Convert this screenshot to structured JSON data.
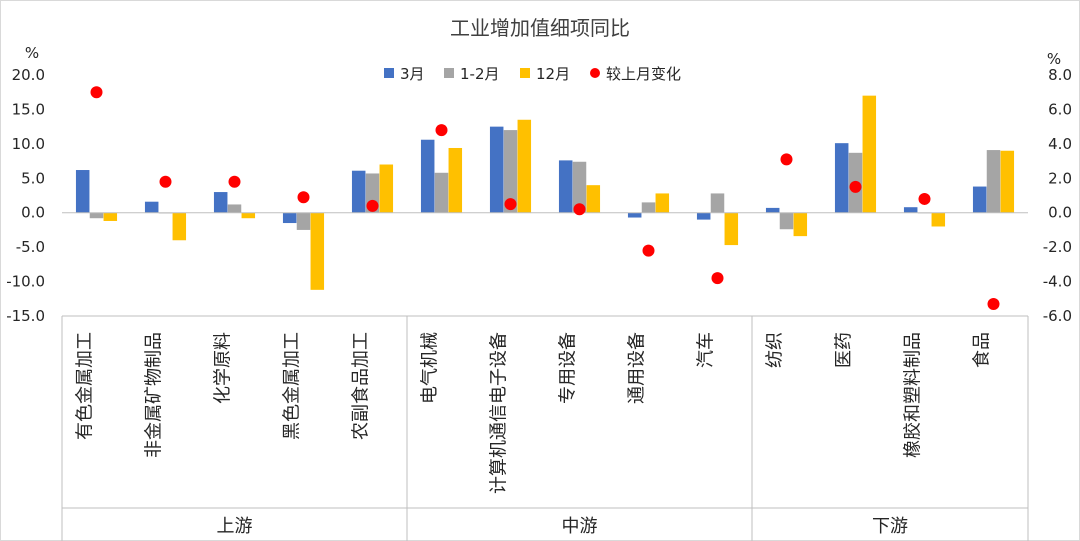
{
  "chart_data": {
    "type": "bar",
    "title": "工业增加值细项同比",
    "left_unit": "%",
    "right_unit": "%",
    "ylim": [
      -15,
      20
    ],
    "y_ticks": [
      "20.0",
      "15.0",
      "10.0",
      "5.0",
      "0.0",
      "-5.0",
      "-10.0",
      "-15.0"
    ],
    "y2lim": [
      -6,
      8
    ],
    "y2_ticks": [
      "8.0",
      "6.0",
      "4.0",
      "2.0",
      "0.0",
      "-2.0",
      "-4.0",
      "-6.0"
    ],
    "categories": [
      "有色金属加工",
      "非金属矿物制品",
      "化学原料",
      "黑色金属加工",
      "农副食品加工",
      "电气机械",
      "计算机通信电子设备",
      "专用设备",
      "通用设备",
      "汽车",
      "纺织",
      "医药",
      "橡胶和塑料制品",
      "食品"
    ],
    "groups": [
      {
        "label": "上游",
        "count": 5
      },
      {
        "label": "中游",
        "count": 5
      },
      {
        "label": "下游",
        "count": 4
      }
    ],
    "series": [
      {
        "name": "3月",
        "color": "#4472C4",
        "axis": "left",
        "values": [
          6.2,
          1.6,
          3.0,
          -1.5,
          6.1,
          10.6,
          12.5,
          7.6,
          -0.7,
          -1.0,
          0.7,
          10.1,
          0.8,
          3.8
        ]
      },
      {
        "name": "1-2月",
        "color": "#A5A5A5",
        "axis": "left",
        "values": [
          -0.8,
          -0.1,
          1.2,
          -2.5,
          5.7,
          5.8,
          12.0,
          7.4,
          1.5,
          2.8,
          -2.4,
          8.7,
          0.0,
          9.1
        ]
      },
      {
        "name": "12月",
        "color": "#FFC000",
        "axis": "left",
        "values": [
          -1.2,
          -4.0,
          -0.8,
          -11.2,
          7.0,
          9.4,
          13.5,
          4.0,
          2.8,
          -4.7,
          -3.4,
          17.0,
          -2.0,
          9.0
        ]
      },
      {
        "name": "较上月变化",
        "color": "#FF0000",
        "axis": "right",
        "type": "scatter",
        "values": [
          7.0,
          1.8,
          1.8,
          0.9,
          0.4,
          4.8,
          0.5,
          0.2,
          -2.2,
          -3.8,
          3.1,
          1.5,
          0.8,
          -5.3
        ]
      }
    ],
    "legend_position": "top",
    "grid": false
  }
}
